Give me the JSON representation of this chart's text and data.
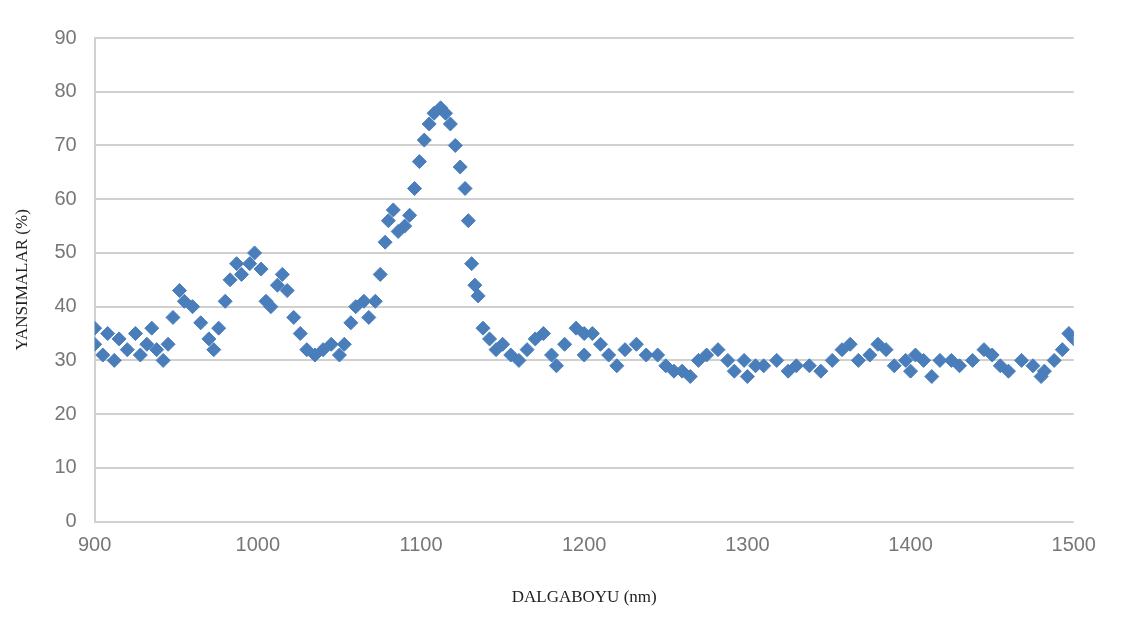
{
  "chart_data": {
    "type": "scatter",
    "xlabel": "DALGABOYU (nm)",
    "ylabel": "YANSIMALAR (%)",
    "xlim": [
      900,
      1500
    ],
    "xticks": [
      900,
      1000,
      1100,
      1200,
      1300,
      1400,
      1500
    ],
    "ylim": [
      0,
      90
    ],
    "yticks": [
      0,
      10,
      20,
      30,
      40,
      50,
      60,
      70,
      80,
      90
    ],
    "grid": "y",
    "marker": "diamond",
    "legend": false,
    "series": [
      {
        "color": "#4a7ebb",
        "x": [
          900,
          900,
          905,
          908,
          912,
          915,
          920,
          925,
          928,
          932,
          935,
          938,
          942,
          945,
          948,
          952,
          955,
          960,
          965,
          970,
          973,
          976,
          980,
          983,
          987,
          990,
          995,
          998,
          1002,
          1005,
          1008,
          1012,
          1015,
          1018,
          1022,
          1026,
          1030,
          1035,
          1040,
          1045,
          1050,
          1053,
          1057,
          1060,
          1065,
          1068,
          1072,
          1075,
          1078,
          1080,
          1083,
          1086,
          1090,
          1093,
          1096,
          1099,
          1102,
          1105,
          1108,
          1112,
          1115,
          1118,
          1121,
          1124,
          1127,
          1129,
          1131,
          1133,
          1135,
          1138,
          1142,
          1146,
          1150,
          1155,
          1160,
          1165,
          1170,
          1175,
          1180,
          1183,
          1188,
          1195,
          1200,
          1200,
          1205,
          1210,
          1215,
          1220,
          1225,
          1232,
          1238,
          1245,
          1250,
          1255,
          1260,
          1265,
          1270,
          1275,
          1282,
          1288,
          1292,
          1298,
          1300,
          1305,
          1310,
          1318,
          1325,
          1330,
          1338,
          1345,
          1352,
          1358,
          1363,
          1368,
          1375,
          1380,
          1385,
          1390,
          1397,
          1400,
          1403,
          1408,
          1413,
          1418,
          1425,
          1430,
          1438,
          1445,
          1450,
          1455,
          1460,
          1468,
          1475,
          1480,
          1482,
          1488,
          1493,
          1497,
          1500
        ],
        "values": [
          33,
          36,
          31,
          35,
          30,
          34,
          32,
          35,
          31,
          33,
          36,
          32,
          30,
          33,
          38,
          43,
          41,
          40,
          37,
          34,
          32,
          36,
          41,
          45,
          48,
          46,
          48,
          50,
          47,
          41,
          40,
          44,
          46,
          43,
          38,
          35,
          32,
          31,
          32,
          33,
          31,
          33,
          37,
          40,
          41,
          38,
          41,
          46,
          52,
          56,
          58,
          54,
          55,
          57,
          62,
          67,
          71,
          74,
          76,
          77,
          76,
          74,
          70,
          66,
          62,
          56,
          48,
          44,
          42,
          36,
          34,
          32,
          33,
          31,
          30,
          32,
          34,
          35,
          31,
          29,
          33,
          36,
          35,
          31,
          35,
          33,
          31,
          29,
          32,
          33,
          31,
          31,
          29,
          28,
          28,
          27,
          30,
          31,
          32,
          30,
          28,
          30,
          27,
          29,
          29,
          30,
          28,
          29,
          29,
          28,
          30,
          32,
          33,
          30,
          31,
          33,
          32,
          29,
          30,
          28,
          31,
          30,
          27,
          30,
          30,
          29,
          30,
          32,
          31,
          29,
          28,
          30,
          29,
          27,
          28,
          30,
          32,
          35,
          34
        ]
      }
    ]
  }
}
